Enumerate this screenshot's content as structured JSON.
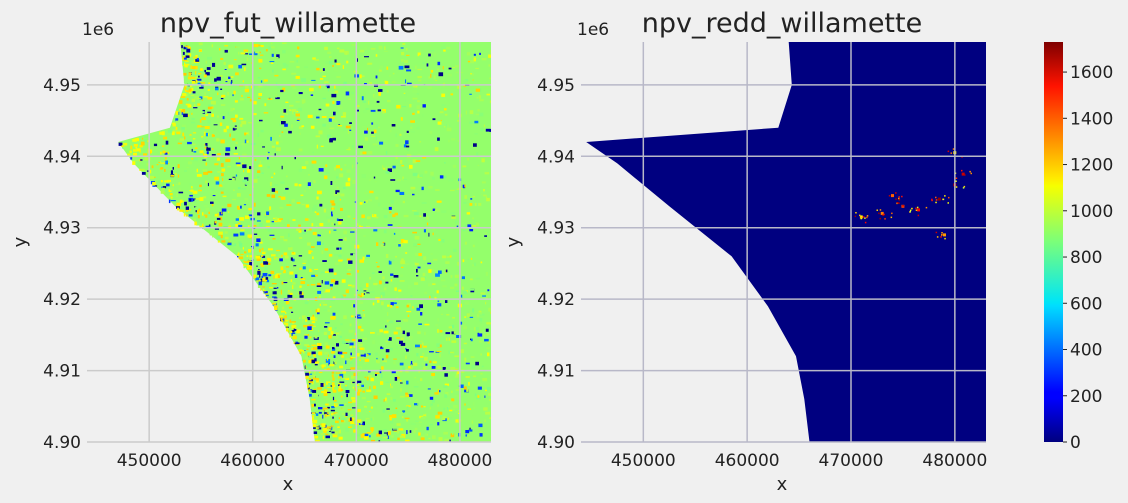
{
  "chart_data": [
    {
      "type": "heatmap",
      "title": "npv_fut_willamette",
      "xlabel": "x",
      "ylabel": "y",
      "xlim": [
        444000,
        483000
      ],
      "ylim": [
        4900000,
        4956000
      ],
      "x_ticks": [
        450000,
        460000,
        470000,
        480000
      ],
      "x_tick_labels": [
        "450000",
        "460000",
        "470000",
        "480000"
      ],
      "y_ticks": [
        4900000,
        4910000,
        4920000,
        4930000,
        4940000,
        4950000
      ],
      "y_tick_labels": [
        "4.90",
        "4.91",
        "4.92",
        "4.93",
        "4.94",
        "4.95"
      ],
      "y_offset_label": "1e6",
      "grid": true,
      "colormap": "jet",
      "value_range": [
        0,
        1730
      ],
      "dominant_value": 900,
      "west_boundary": [
        [
          4956000,
          453000
        ],
        [
          4950000,
          453400
        ],
        [
          4944000,
          452000
        ],
        [
          4942000,
          447000
        ],
        [
          4939000,
          448500
        ],
        [
          4933000,
          452500
        ],
        [
          4926000,
          458500
        ],
        [
          4919000,
          462000
        ],
        [
          4912000,
          464700
        ],
        [
          4906000,
          465500
        ],
        [
          4900000,
          466000
        ]
      ]
    },
    {
      "type": "heatmap",
      "title": "npv_redd_willamette",
      "xlabel": "x",
      "ylabel": "y",
      "xlim": [
        444000,
        483000
      ],
      "ylim": [
        4900000,
        4956000
      ],
      "x_ticks": [
        450000,
        460000,
        470000,
        480000
      ],
      "x_tick_labels": [
        "450000",
        "460000",
        "470000",
        "480000"
      ],
      "y_ticks": [
        4900000,
        4910000,
        4920000,
        4930000,
        4940000,
        4950000
      ],
      "y_tick_labels": [
        "4.90",
        "4.91",
        "4.92",
        "4.93",
        "4.94",
        "4.95"
      ],
      "y_offset_label": "1e6",
      "grid": true,
      "colormap": "jet",
      "value_range": [
        0,
        1730
      ],
      "dominant_value": 0,
      "west_boundary": [
        [
          4956000,
          464000
        ],
        [
          4950000,
          464300
        ],
        [
          4944000,
          463000
        ],
        [
          4942000,
          444500
        ],
        [
          4939000,
          447500
        ],
        [
          4933000,
          452500
        ],
        [
          4926000,
          458500
        ],
        [
          4919000,
          462000
        ],
        [
          4912000,
          464700
        ],
        [
          4906000,
          465500
        ],
        [
          4900000,
          466000
        ]
      ],
      "hotspots": [
        {
          "x": 478500,
          "y": 4934000,
          "value": 1700
        },
        {
          "x": 480000,
          "y": 4936000,
          "value": 1650
        },
        {
          "x": 480800,
          "y": 4937500,
          "value": 1600
        },
        {
          "x": 476500,
          "y": 4932500,
          "value": 1500
        },
        {
          "x": 475000,
          "y": 4933000,
          "value": 1400
        },
        {
          "x": 473000,
          "y": 4932000,
          "value": 1300
        },
        {
          "x": 471000,
          "y": 4931500,
          "value": 1200
        },
        {
          "x": 479000,
          "y": 4929000,
          "value": 1250
        },
        {
          "x": 480000,
          "y": 4940500,
          "value": 1100
        },
        {
          "x": 474000,
          "y": 4934500,
          "value": 1350
        }
      ]
    }
  ],
  "colorbar": {
    "ticks": [
      0,
      200,
      400,
      600,
      800,
      1000,
      1200,
      1400,
      1600
    ],
    "tick_labels": [
      "0",
      "200",
      "400",
      "600",
      "800",
      "1000",
      "1200",
      "1400",
      "1600"
    ],
    "range": [
      0,
      1730
    ]
  }
}
